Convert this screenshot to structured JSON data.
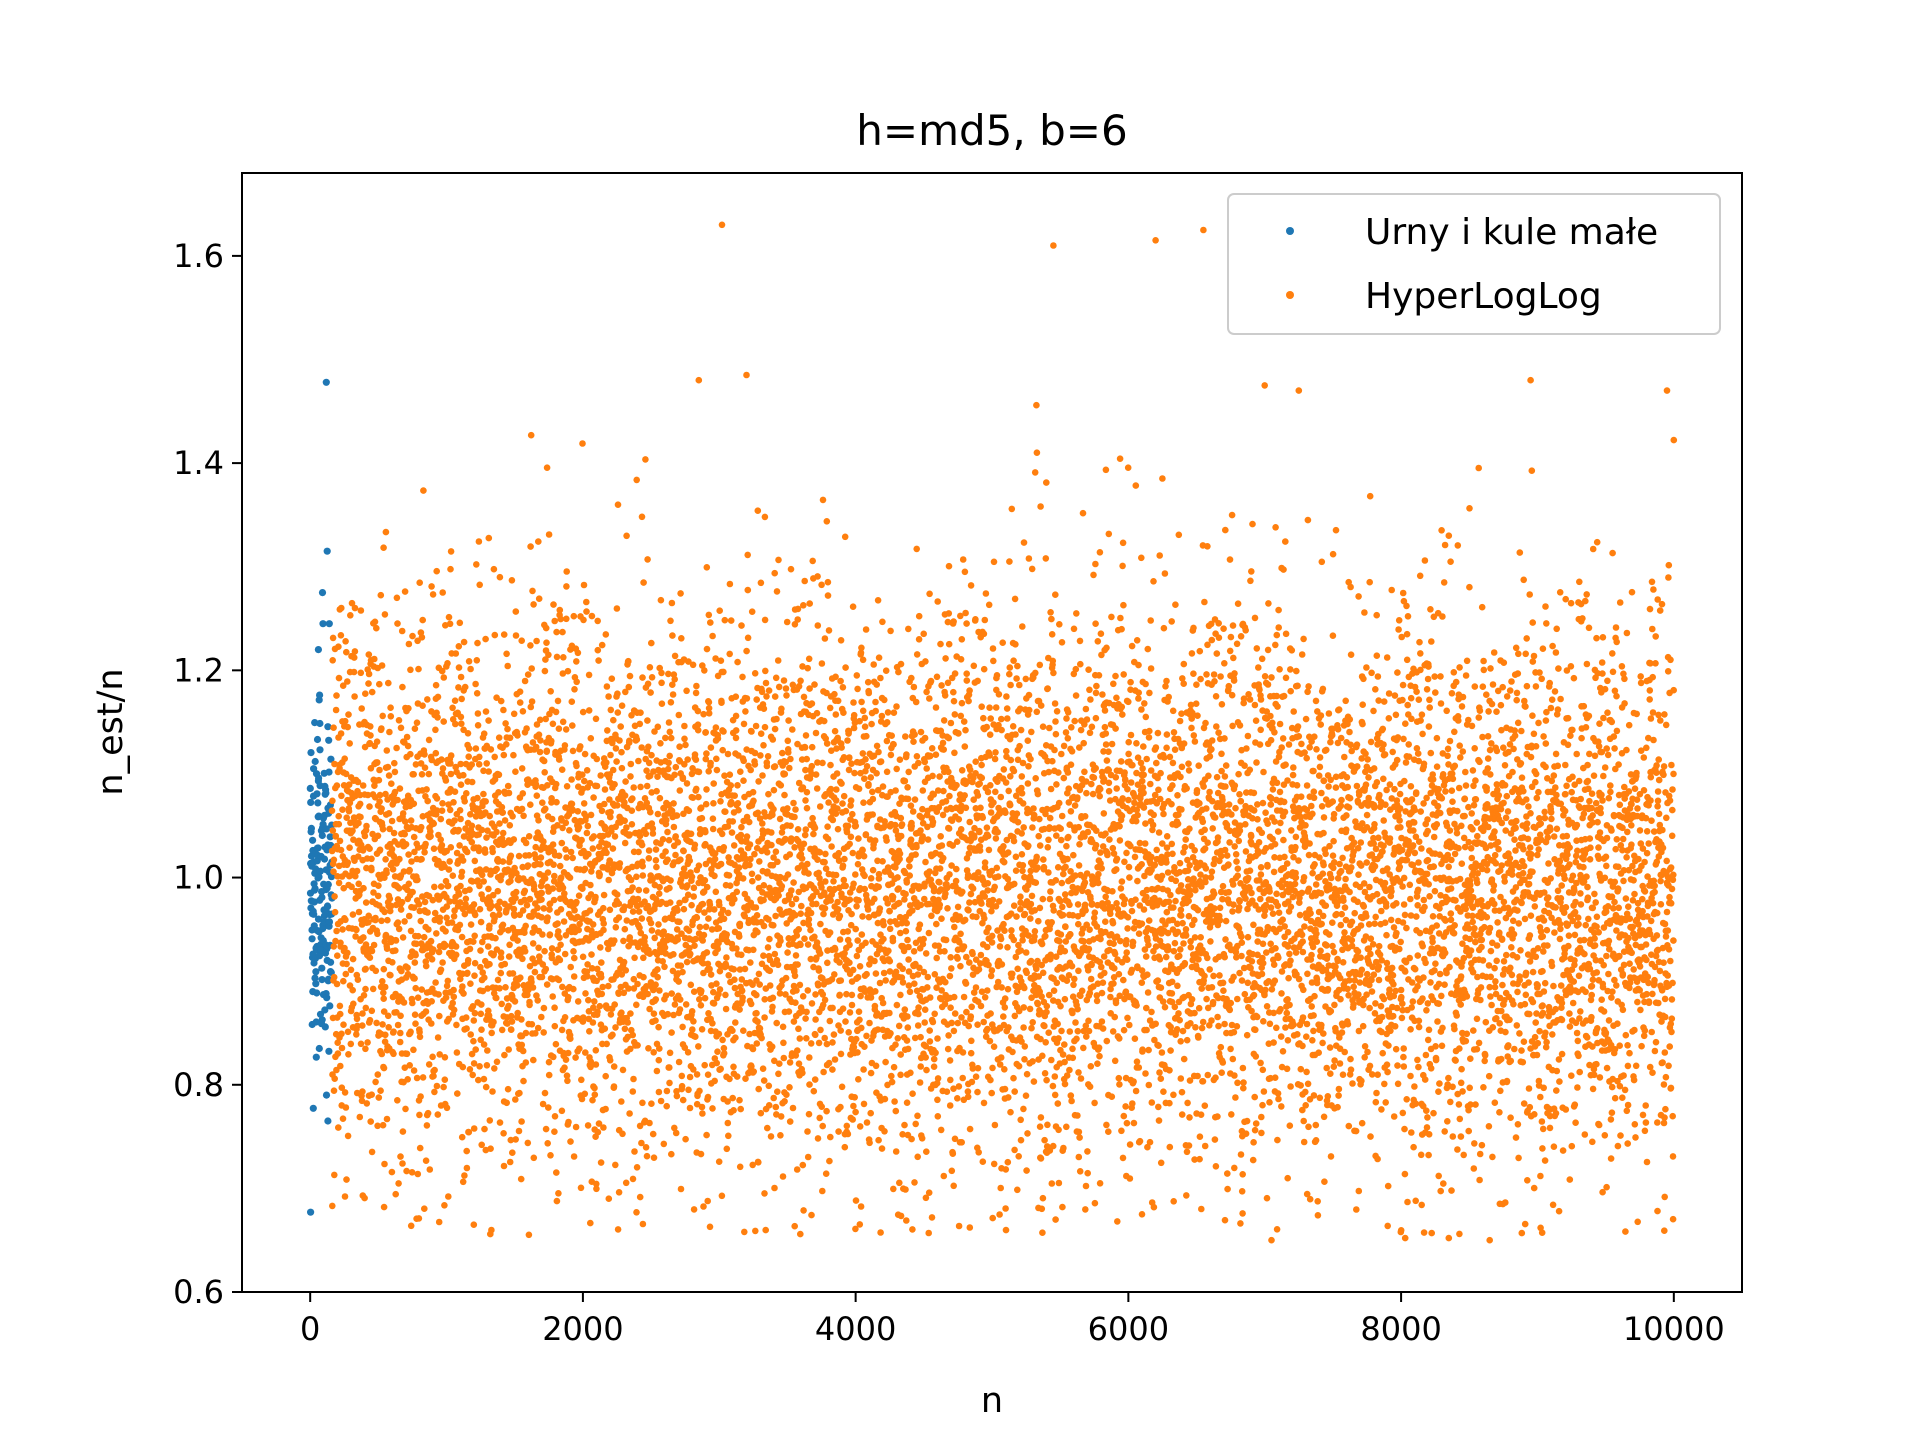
{
  "chart_data": {
    "type": "scatter",
    "title": "h=md5, b=6",
    "xlabel": "n",
    "ylabel": "n_est/n",
    "xlim": [
      -500,
      10500
    ],
    "ylim": [
      0.6,
      1.68
    ],
    "xticks": [
      0,
      2000,
      4000,
      6000,
      8000,
      10000
    ],
    "xtick_labels": [
      "0",
      "2000",
      "4000",
      "6000",
      "8000",
      "10000"
    ],
    "yticks": [
      0.6,
      0.8,
      1.0,
      1.2,
      1.4,
      1.6
    ],
    "ytick_labels": [
      "0.6",
      "0.8",
      "1.0",
      "1.2",
      "1.4",
      "1.6"
    ],
    "grid": false,
    "legend_position": "top-right",
    "series": [
      {
        "name": "Urny i kule małe",
        "color": "#1f77b4",
        "x_range": [
          1,
          160
        ],
        "count": 160,
        "center": 1.0,
        "spread": 0.09,
        "outliers": [
          [
            3,
            0.677
          ],
          [
            118,
            1.478
          ],
          [
            125,
            1.315
          ],
          [
            90,
            1.275
          ],
          [
            130,
            0.765
          ],
          [
            120,
            0.79
          ],
          [
            60,
            1.22
          ],
          [
            140,
            1.245
          ]
        ]
      },
      {
        "name": "HyperLogLog",
        "color": "#ff7f0e",
        "x_range": [
          160,
          10000
        ],
        "count": 9840,
        "center": 0.99,
        "spread": 0.13,
        "outliers": [
          [
            3020,
            1.63
          ],
          [
            5450,
            1.61
          ],
          [
            6200,
            1.615
          ],
          [
            6550,
            1.625
          ],
          [
            2850,
            1.48
          ],
          [
            3200,
            1.485
          ],
          [
            7000,
            1.475
          ],
          [
            7250,
            1.47
          ],
          [
            8950,
            1.48
          ],
          [
            9950,
            1.47
          ],
          [
            7050,
            0.65
          ],
          [
            8650,
            0.65
          ],
          [
            8030,
            0.652
          ],
          [
            8350,
            0.652
          ],
          [
            1200,
            0.665
          ],
          [
            4560,
            0.672
          ],
          [
            6100,
            0.675
          ]
        ]
      }
    ]
  }
}
